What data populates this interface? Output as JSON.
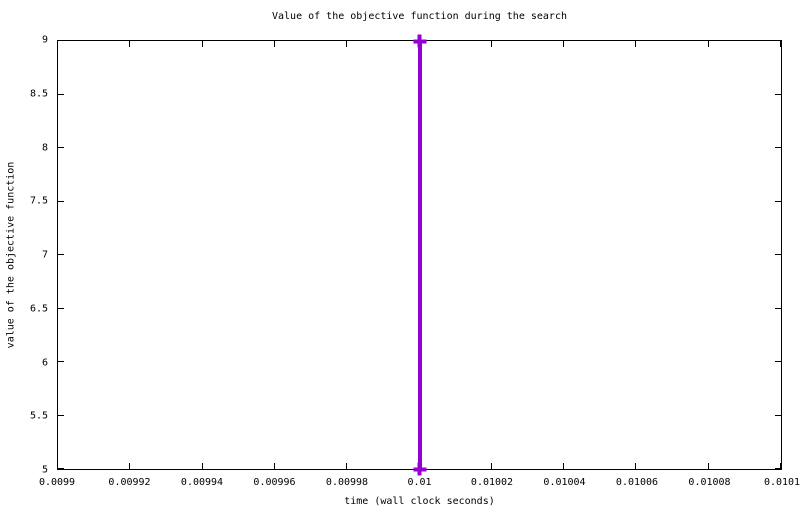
{
  "chart_data": {
    "type": "line",
    "style": "linespoints",
    "title": "Value of the objective function during the search",
    "xlabel": "time (wall clock seconds)",
    "ylabel": "value of the objective function",
    "xlim": [
      0.0099,
      0.0101
    ],
    "ylim": [
      5,
      9
    ],
    "x_ticks": [
      "0.0099",
      "0.00992",
      "0.00994",
      "0.00996",
      "0.00998",
      "0.01",
      "0.01002",
      "0.01004",
      "0.01006",
      "0.01008",
      "0.0101"
    ],
    "y_ticks": [
      "5",
      "5.5",
      "6",
      "6.5",
      "7",
      "7.5",
      "8",
      "8.5",
      "9"
    ],
    "grid": false,
    "legend": "none",
    "frame_color": "#000000",
    "background_color": "#ffffff",
    "series": [
      {
        "color": "#9400d3",
        "marker": "plus",
        "line_width": 4,
        "points": [
          {
            "x": 0.01,
            "y": 9
          },
          {
            "x": 0.01,
            "y": 5
          }
        ]
      }
    ]
  }
}
